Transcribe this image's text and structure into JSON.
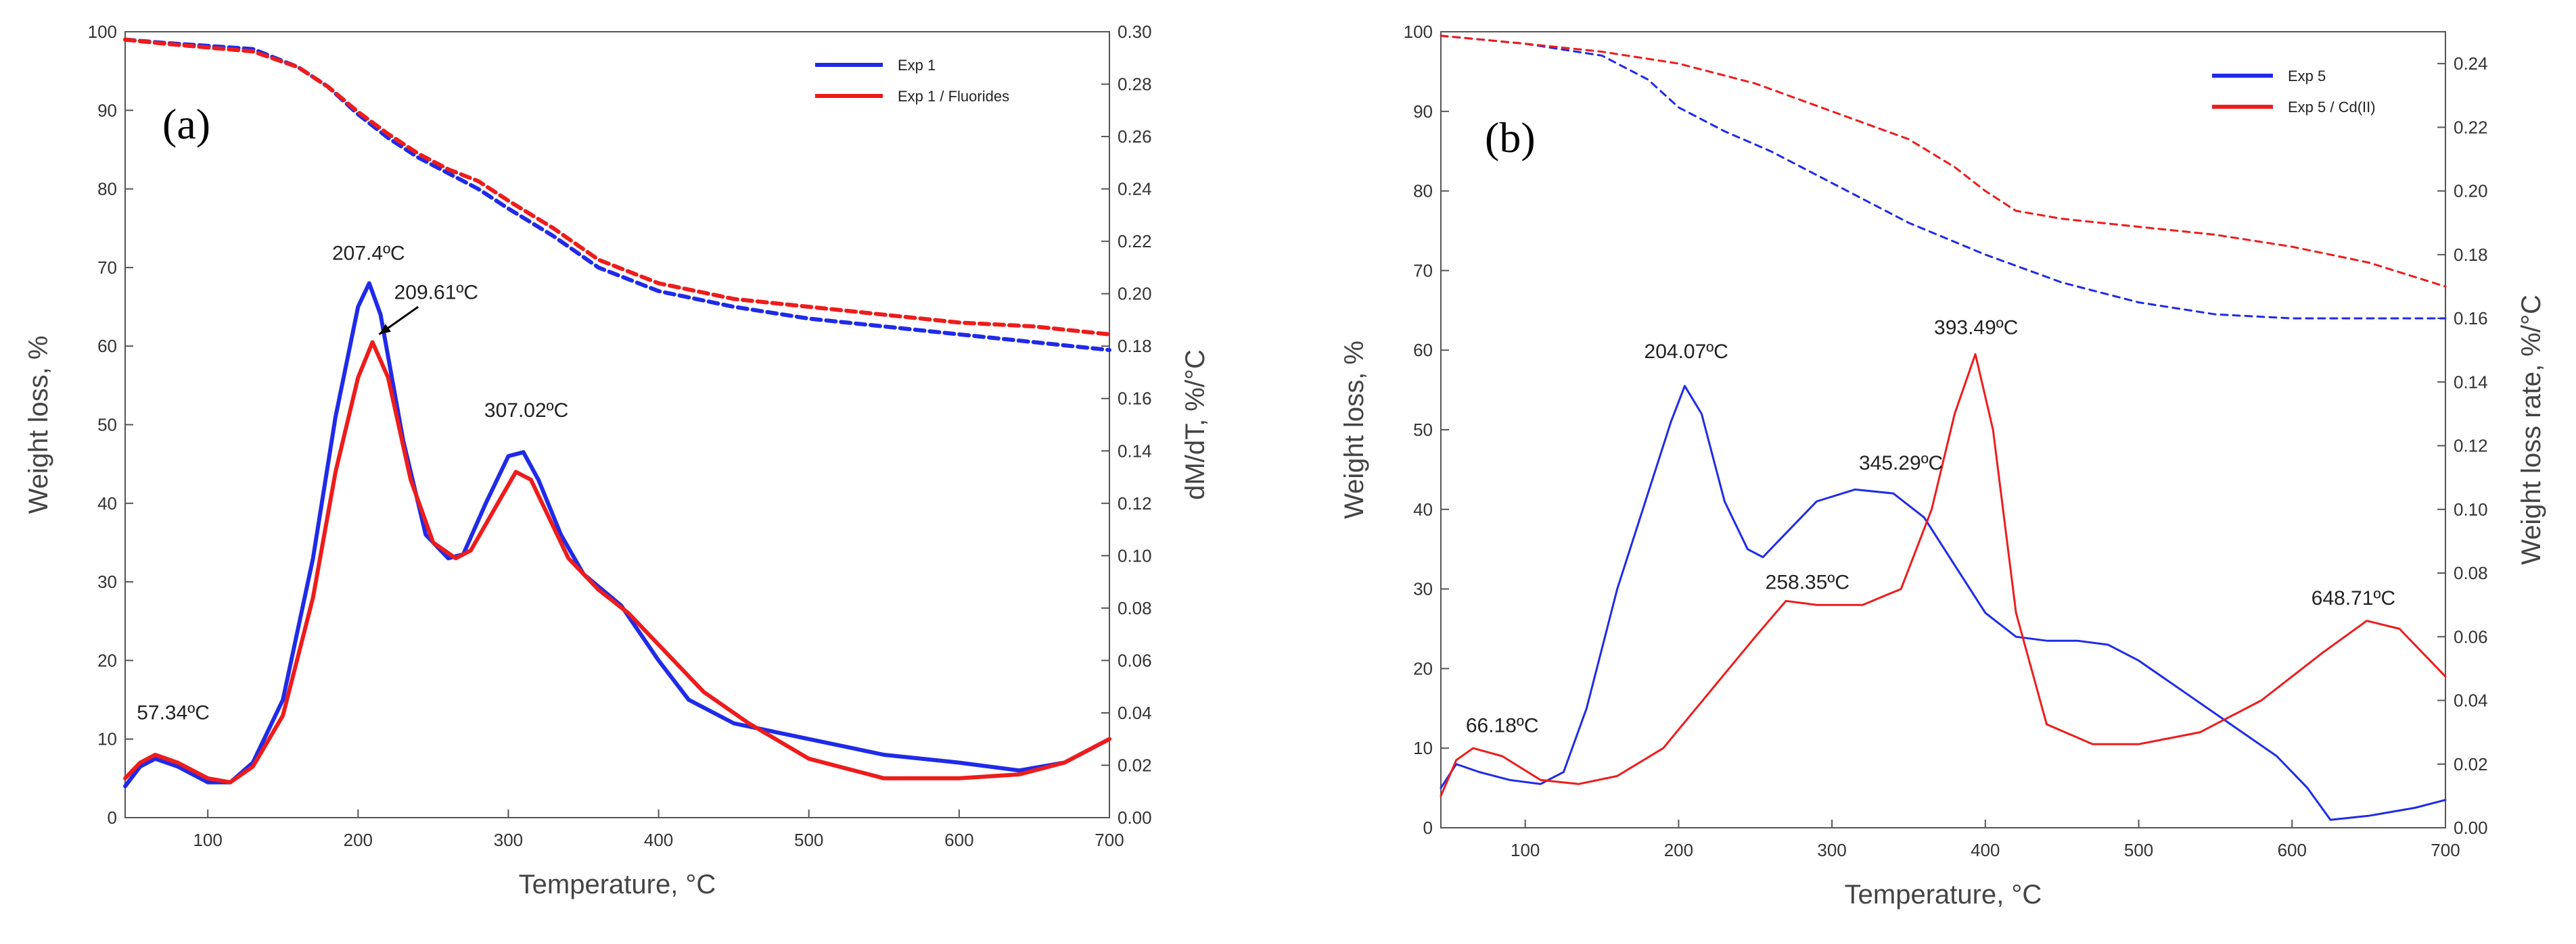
{
  "colors": {
    "blue": "#1f2be8",
    "red": "#ee1c1c",
    "axis": "#555555"
  },
  "chart_data": [
    {
      "type": "line",
      "panel_label": "(a)",
      "xlabel": "Temperature, °C",
      "ylabel": "Weight loss, %",
      "y2label": "dM/dT, %/°C",
      "xlim": [
        45,
        700
      ],
      "ylim": [
        0,
        100
      ],
      "y2lim": [
        0,
        0.3
      ],
      "xticks": [
        "100",
        "200",
        "300",
        "400",
        "500",
        "600",
        "700"
      ],
      "yticks": [
        "0",
        "10",
        "20",
        "30",
        "40",
        "50",
        "60",
        "70",
        "80",
        "90",
        "100"
      ],
      "y2ticks": [
        "0.00",
        "0.02",
        "0.04",
        "0.06",
        "0.08",
        "0.10",
        "0.12",
        "0.14",
        "0.16",
        "0.18",
        "0.20",
        "0.22",
        "0.24",
        "0.26",
        "0.28",
        "0.30"
      ],
      "legend": [
        "Exp 1",
        "Exp 1 / Fluorides"
      ],
      "legend_position": "top-right",
      "grid": false,
      "series": [
        {
          "name": "Exp 1",
          "color": "#1f2be8",
          "style": "dashed",
          "axis": "left",
          "x": [
            45,
            70,
            100,
            130,
            160,
            180,
            200,
            220,
            240,
            260,
            280,
            300,
            330,
            360,
            400,
            450,
            500,
            550,
            600,
            650,
            700
          ],
          "y": [
            99,
            98.6,
            98.2,
            97.8,
            95.5,
            93,
            89.5,
            86.5,
            84,
            82,
            80,
            77.5,
            74,
            70,
            67,
            65,
            63.5,
            62.5,
            61.5,
            60.5,
            59.5
          ]
        },
        {
          "name": "Exp 1 / Fluorides",
          "color": "#ee1c1c",
          "style": "dashed",
          "axis": "left",
          "x": [
            45,
            70,
            100,
            130,
            160,
            180,
            200,
            220,
            240,
            260,
            280,
            300,
            330,
            360,
            400,
            450,
            500,
            550,
            600,
            650,
            700
          ],
          "y": [
            99,
            98.5,
            98,
            97.5,
            95.5,
            93,
            89.8,
            87,
            84.5,
            82.5,
            81,
            78.5,
            75,
            71,
            68,
            66,
            65,
            64,
            63,
            62.5,
            61.5
          ]
        },
        {
          "name": "Exp 1",
          "color": "#1f2be8",
          "style": "solid",
          "axis": "left",
          "x": [
            45,
            55,
            65,
            80,
            100,
            115,
            130,
            150,
            170,
            185,
            200,
            207.4,
            215,
            230,
            245,
            260,
            270,
            285,
            300,
            310,
            320,
            335,
            350,
            375,
            400,
            420,
            450,
            500,
            550,
            600,
            640,
            670,
            700
          ],
          "y": [
            4,
            6.5,
            7.5,
            6.5,
            4.5,
            4.5,
            7,
            15,
            33,
            51,
            65,
            68,
            64,
            48,
            36,
            33,
            33.5,
            40,
            46,
            46.5,
            43,
            36,
            31,
            27,
            20,
            15,
            12,
            10,
            8,
            7,
            6,
            7,
            10
          ]
        },
        {
          "name": "Exp 1 / Fluorides",
          "color": "#ee1c1c",
          "style": "solid",
          "axis": "left",
          "x": [
            45,
            55,
            65,
            80,
            100,
            115,
            130,
            150,
            170,
            185,
            200,
            209.6,
            220,
            235,
            250,
            265,
            275,
            290,
            305,
            315,
            325,
            340,
            360,
            380,
            400,
            430,
            460,
            500,
            550,
            600,
            640,
            670,
            700
          ],
          "y": [
            5,
            7,
            8,
            7,
            5,
            4.5,
            6.5,
            13,
            28,
            44,
            56,
            60.5,
            56,
            43,
            35,
            33,
            34,
            39,
            44,
            43,
            39,
            33,
            29,
            26,
            22,
            16,
            12,
            7.5,
            5,
            5,
            5.5,
            7,
            10
          ]
        }
      ],
      "annotations": [
        {
          "text": "207.4ºC",
          "x": 207,
          "y": 71
        },
        {
          "text": "209.61ºC",
          "x": 252,
          "y": 66
        },
        {
          "text": "307.02ºC",
          "x": 312,
          "y": 51
        },
        {
          "text": "57.34ºC",
          "x": 77,
          "y": 12.5
        }
      ]
    },
    {
      "type": "line",
      "panel_label": "(b)",
      "xlabel": "Temperature, °C",
      "ylabel": "Weight loss, %",
      "y2label": "Weight loss rate, %/°C",
      "xlim": [
        45,
        700
      ],
      "ylim": [
        0,
        100
      ],
      "y2lim": [
        0,
        0.25
      ],
      "xticks": [
        "100",
        "200",
        "300",
        "400",
        "500",
        "600",
        "700"
      ],
      "yticks": [
        "0",
        "10",
        "20",
        "30",
        "40",
        "50",
        "60",
        "70",
        "80",
        "90",
        "100"
      ],
      "y2ticks": [
        "0.00",
        "0.02",
        "0.04",
        "0.06",
        "0.08",
        "0.10",
        "0.12",
        "0.14",
        "0.16",
        "0.18",
        "0.20",
        "0.22",
        "0.24"
      ],
      "legend": [
        "Exp 5",
        "Exp 5 / Cd(II)"
      ],
      "legend_position": "top-right",
      "grid": false,
      "series": [
        {
          "name": "Exp 5",
          "color": "#1f2be8",
          "style": "dashed",
          "axis": "left",
          "x": [
            45,
            100,
            150,
            180,
            200,
            230,
            260,
            300,
            350,
            400,
            450,
            500,
            550,
            600,
            650,
            700
          ],
          "y": [
            99.5,
            98.5,
            97,
            94,
            90.5,
            87.5,
            85,
            81,
            76,
            72,
            68.5,
            66,
            64.5,
            64,
            64,
            64
          ]
        },
        {
          "name": "Exp 5 / Cd(II)",
          "color": "#ee1c1c",
          "style": "dashed",
          "axis": "left",
          "x": [
            45,
            100,
            150,
            200,
            250,
            300,
            350,
            380,
            400,
            420,
            450,
            500,
            550,
            600,
            650,
            700
          ],
          "y": [
            99.5,
            98.5,
            97.5,
            96,
            93.5,
            90,
            86.5,
            83,
            80,
            77.5,
            76.5,
            75.5,
            74.5,
            73,
            71,
            68
          ]
        },
        {
          "name": "Exp 5",
          "color": "#1f2be8",
          "style": "solid",
          "axis": "left",
          "x": [
            45,
            55,
            70,
            90,
            110,
            125,
            140,
            160,
            180,
            195,
            204,
            215,
            230,
            245,
            255,
            270,
            290,
            315,
            340,
            360,
            380,
            400,
            420,
            440,
            460,
            480,
            500,
            530,
            560,
            590,
            610,
            625,
            650,
            680,
            700
          ],
          "y": [
            5,
            8,
            7,
            6,
            5.5,
            7,
            15,
            30,
            42,
            51,
            55.5,
            52,
            41,
            35,
            34,
            37,
            41,
            42.5,
            42,
            39,
            33,
            27,
            24,
            23.5,
            23.5,
            23,
            21,
            17,
            13,
            9,
            5,
            1,
            1.5,
            2.5,
            3.5
          ]
        },
        {
          "name": "Exp 5 / Cd(II)",
          "color": "#ee1c1c",
          "style": "solid",
          "axis": "left",
          "x": [
            45,
            55,
            66,
            85,
            110,
            135,
            160,
            190,
            220,
            250,
            270,
            290,
            320,
            345,
            365,
            380,
            393.5,
            405,
            420,
            440,
            470,
            500,
            540,
            580,
            620,
            648.7,
            670,
            690,
            700
          ],
          "y": [
            4,
            8.5,
            10,
            9,
            6,
            5.5,
            6.5,
            10,
            17,
            24,
            28.5,
            28,
            28,
            30,
            40,
            52,
            59.5,
            50,
            27,
            13,
            10.5,
            10.5,
            12,
            16,
            22,
            26,
            25,
            21,
            19
          ]
        }
      ],
      "annotations": [
        {
          "text": "204.07ºC",
          "x": 205,
          "y": 59
        },
        {
          "text": "345.29ºC",
          "x": 345,
          "y": 45
        },
        {
          "text": "393.49ºC",
          "x": 394,
          "y": 62
        },
        {
          "text": "258.35ºC",
          "x": 284,
          "y": 30
        },
        {
          "text": "66.18ºC",
          "x": 85,
          "y": 12
        },
        {
          "text": "648.71ºC",
          "x": 640,
          "y": 28
        }
      ]
    }
  ]
}
